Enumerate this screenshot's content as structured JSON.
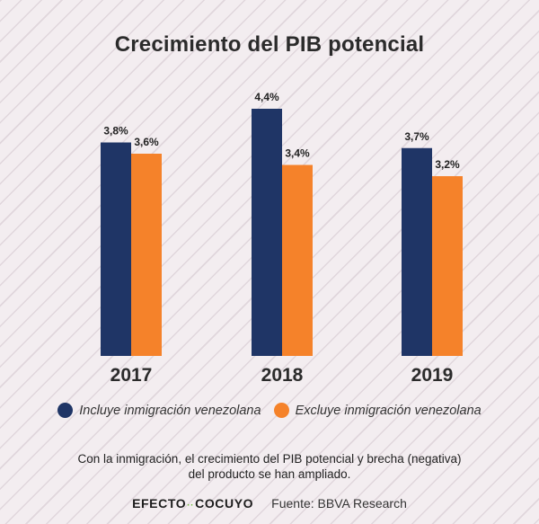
{
  "chart_data": {
    "type": "bar",
    "title": "Crecimiento del PIB potencial",
    "categories": [
      "2017",
      "2018",
      "2019"
    ],
    "series": [
      {
        "name": "Incluye inmigración venezolana",
        "values": [
          3.8,
          4.4,
          3.7
        ],
        "labels": [
          "3,8%",
          "4,4%",
          "3,7%"
        ],
        "color": "#1f3566"
      },
      {
        "name": "Excluye inmigración venezolana",
        "values": [
          3.6,
          3.4,
          3.2
        ],
        "labels": [
          "3,6%",
          "3,4%",
          "3,2%"
        ],
        "color": "#f5822a"
      }
    ],
    "ylim": [
      0,
      4.4
    ],
    "grid": false,
    "legend": "bottom"
  },
  "note": {
    "line1": "Con la inmigración, el crecimiento del PIB potencial y brecha (negativa)",
    "line2": "del producto se han ampliado."
  },
  "footer": {
    "brand_left": "EFECTO",
    "brand_right": "COCUYO",
    "source": "Fuente: BBVA Research"
  }
}
